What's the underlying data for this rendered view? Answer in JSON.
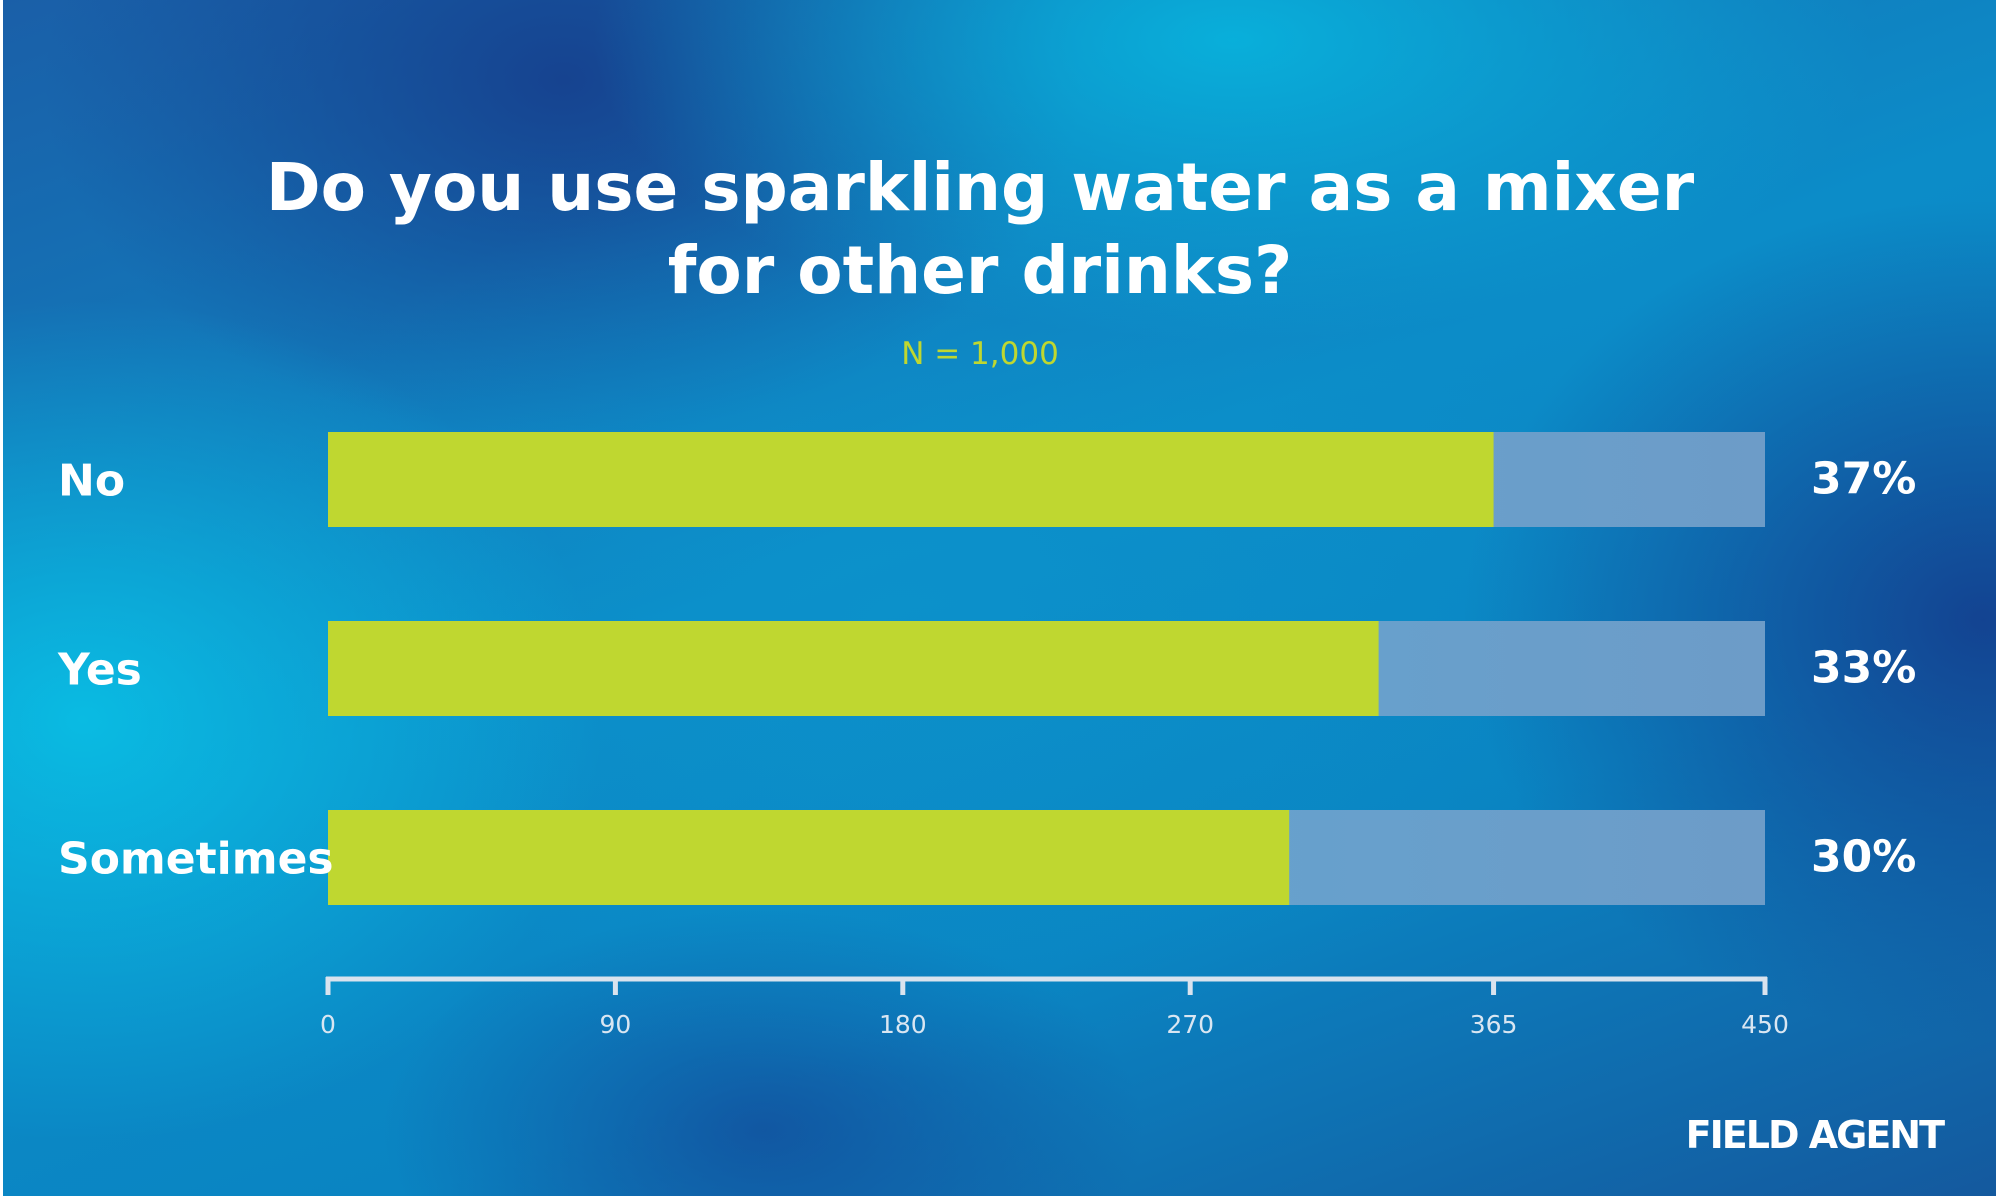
{
  "colors": {
    "bar_fill": "#bfd730",
    "bar_track": "#6d9cc8",
    "subtitle": "#bfd730",
    "text": "#ffffff",
    "axis": "#d9e3ee"
  },
  "chart_data": {
    "type": "bar",
    "orientation": "horizontal",
    "title": "Do you use sparkling water as a mixer for other drinks?",
    "title_lines": [
      "Do you use sparkling water as a mixer",
      "for other drinks?"
    ],
    "subtitle": "N = 1,000",
    "categories": [
      "No",
      "Yes",
      "Sometimes"
    ],
    "values": [
      365,
      329,
      301
    ],
    "value_labels": [
      "37%",
      "33%",
      "30%"
    ],
    "xlim": [
      0,
      450
    ],
    "x_ticks": [
      0,
      90,
      180,
      270,
      365,
      450
    ],
    "x_tick_labels": [
      "0",
      "90",
      "180",
      "270",
      "365",
      "450"
    ],
    "grid": false,
    "legend": "none"
  },
  "brand": {
    "logo_text": "FIELD AGENT"
  }
}
